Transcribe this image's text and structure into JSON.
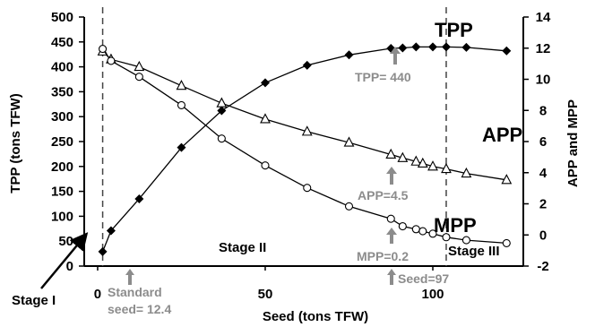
{
  "chart_data": {
    "type": "line",
    "xlabel": "Seed (tons TFW)",
    "ylabel_left": "TPP (tons TFW)",
    "ylabel_right": "APP and MPP",
    "xlim": [
      -4,
      127
    ],
    "ylim_left": [
      0,
      500
    ],
    "ylim_right": [
      -2,
      14
    ],
    "x_ticks": [
      0,
      50,
      100
    ],
    "y_ticks_left": [
      0,
      50,
      100,
      150,
      200,
      250,
      300,
      350,
      400,
      450,
      500
    ],
    "y_ticks_right": [
      -2,
      0,
      2,
      4,
      6,
      8,
      10,
      12,
      14
    ],
    "colors": {
      "series": "#000000",
      "guide": "#444444",
      "annotation": "#8c8c8c"
    },
    "series": [
      {
        "name": "TPP",
        "axis": "left",
        "marker": "filled-diamond",
        "x": [
          1.5,
          4,
          12.4,
          25,
          37,
          50,
          62.5,
          75,
          87.5,
          91,
          95,
          100,
          104,
          110,
          122
        ],
        "y": [
          29,
          71,
          135,
          238,
          312,
          368,
          403,
          424,
          437,
          438,
          440,
          440,
          440,
          439,
          432
        ]
      },
      {
        "name": "APP",
        "axis": "left",
        "marker": "open-triangle",
        "x": [
          1.5,
          4,
          12.4,
          25,
          37,
          50,
          62.5,
          75,
          87.5,
          91,
          95,
          97,
          100,
          104,
          110,
          122
        ],
        "y": [
          431,
          415,
          400,
          362,
          327,
          295,
          270,
          248,
          224,
          217,
          210,
          206,
          200,
          195,
          186,
          173
        ]
      },
      {
        "name": "MPP",
        "axis": "left",
        "marker": "open-circle",
        "x": [
          1.5,
          4,
          12.4,
          25,
          37,
          50,
          62.5,
          75,
          87.5,
          91,
          95,
          97,
          100,
          104,
          110,
          122
        ],
        "y": [
          436,
          412,
          380,
          323,
          256,
          202,
          157,
          120,
          95,
          80,
          74,
          70,
          65,
          58,
          52,
          46
        ]
      }
    ],
    "guide_lines_x": [
      1.5,
      104
    ],
    "annotations": {
      "tpp_max": "TPP= 440",
      "app_value": "APP=4.5",
      "mpp_value": "MPP=0.2",
      "seed_optimum": "Seed=97",
      "standard_seed_line1": "Standard",
      "standard_seed_line2": "seed= 12.4"
    },
    "stages": [
      "Stage I",
      "Stage II",
      "Stage III"
    ]
  }
}
